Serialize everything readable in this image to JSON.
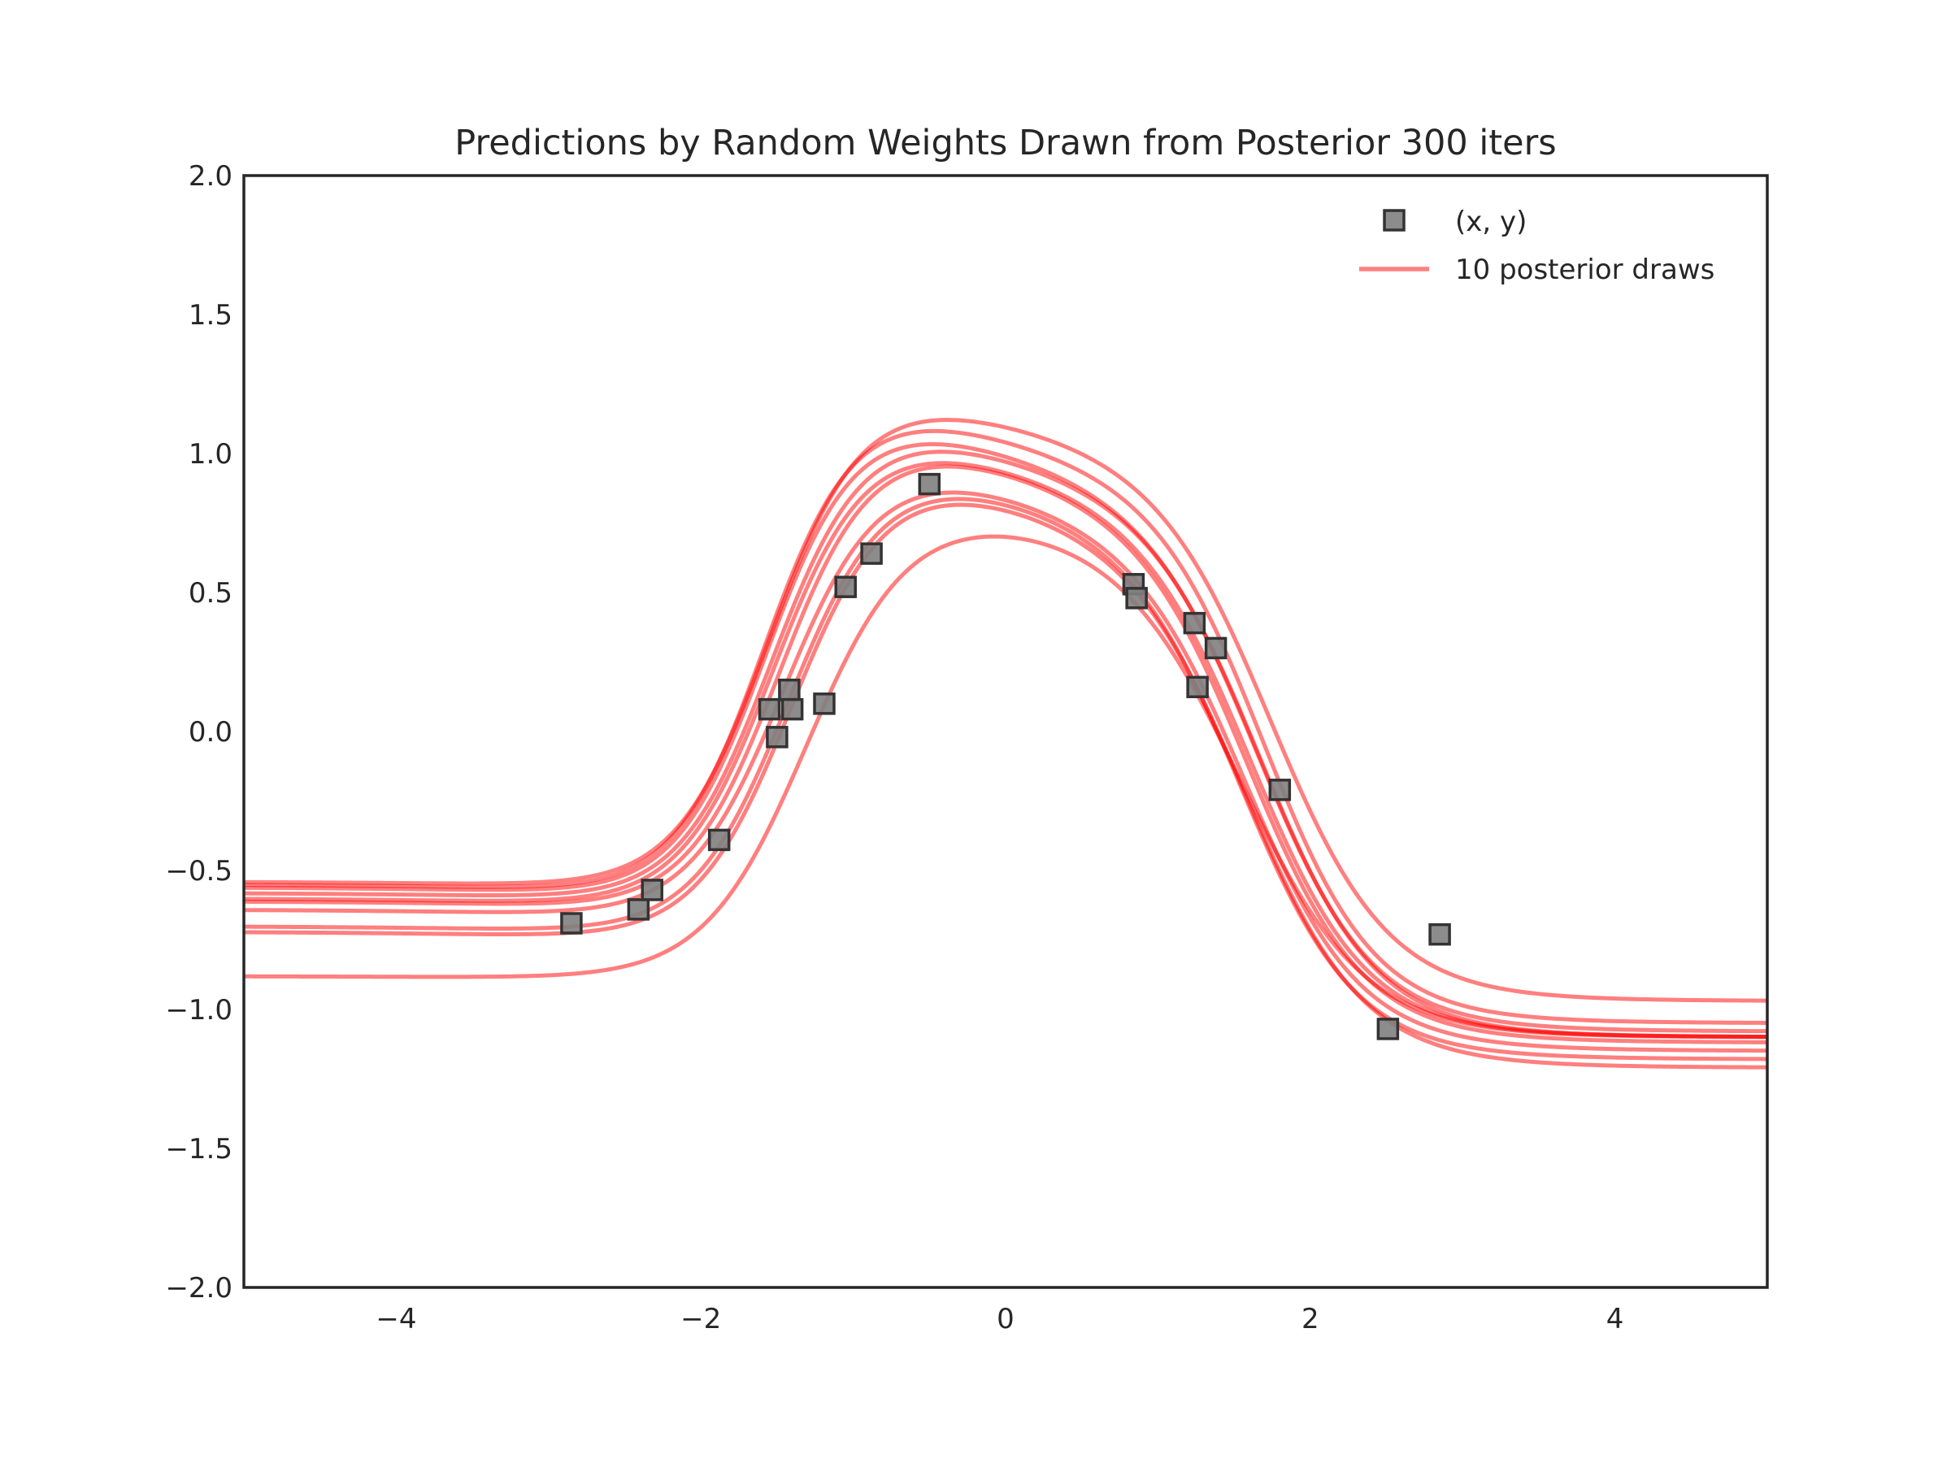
{
  "chart_data": {
    "type": "line",
    "title": "Predictions by Random Weights Drawn from Posterior 300 iters",
    "xlabel": "",
    "ylabel": "",
    "xlim": [
      -5,
      5
    ],
    "ylim": [
      -2,
      2
    ],
    "xticks": [
      -4,
      -2,
      0,
      2,
      4
    ],
    "xtick_labels": [
      "−4",
      "−2",
      "0",
      "2",
      "4"
    ],
    "yticks": [
      -2,
      -1.5,
      -1,
      -0.5,
      0,
      0.5,
      1,
      1.5,
      2
    ],
    "ytick_labels": [
      "−2.0",
      "−1.5",
      "−1.0",
      "−0.5",
      "0.0",
      "0.5",
      "1.0",
      "1.5",
      "2.0"
    ],
    "grid": false,
    "legend_position": "top-right",
    "colors": {
      "line": "#ff0000",
      "line_alpha": 0.5,
      "marker_fill": "#7f7f7f",
      "marker_edge": "#333333",
      "axes": "#262626"
    },
    "scatter": {
      "name": "(x, y)",
      "marker": "square",
      "points": [
        {
          "x": -2.85,
          "y": -0.69
        },
        {
          "x": -2.41,
          "y": -0.64
        },
        {
          "x": -2.32,
          "y": -0.57
        },
        {
          "x": -1.88,
          "y": -0.39
        },
        {
          "x": -1.55,
          "y": 0.08
        },
        {
          "x": -1.5,
          "y": -0.02
        },
        {
          "x": -1.42,
          "y": 0.15
        },
        {
          "x": -1.4,
          "y": 0.08
        },
        {
          "x": -1.19,
          "y": 0.1
        },
        {
          "x": -1.05,
          "y": 0.52
        },
        {
          "x": -0.88,
          "y": 0.64
        },
        {
          "x": -0.5,
          "y": 0.89
        },
        {
          "x": 0.84,
          "y": 0.53
        },
        {
          "x": 0.86,
          "y": 0.48
        },
        {
          "x": 1.24,
          "y": 0.39
        },
        {
          "x": 1.26,
          "y": 0.16
        },
        {
          "x": 1.38,
          "y": 0.3
        },
        {
          "x": 1.8,
          "y": -0.21
        },
        {
          "x": 2.51,
          "y": -1.07
        },
        {
          "x": 2.85,
          "y": -0.73
        }
      ]
    },
    "lines": {
      "name": "10 posterior draws",
      "draws": [
        {
          "left": -0.54,
          "right": -0.97,
          "peak": 1.11,
          "center": -0.15,
          "rise": -1.55,
          "fall": 1.75,
          "ws": 0.31,
          "wf": 0.38
        },
        {
          "left": -0.55,
          "right": -1.05,
          "peak": 1.06,
          "center": -0.15,
          "rise": -1.58,
          "fall": 1.7,
          "ws": 0.3,
          "wf": 0.36
        },
        {
          "left": -0.56,
          "right": -1.08,
          "peak": 1.01,
          "center": -0.15,
          "rise": -1.57,
          "fall": 1.66,
          "ws": 0.3,
          "wf": 0.37
        },
        {
          "left": -0.58,
          "right": -1.1,
          "peak": 0.99,
          "center": -0.15,
          "rise": -1.53,
          "fall": 1.68,
          "ws": 0.31,
          "wf": 0.37
        },
        {
          "left": -0.6,
          "right": -1.1,
          "peak": 0.95,
          "center": -0.15,
          "rise": -1.52,
          "fall": 1.62,
          "ws": 0.31,
          "wf": 0.37
        },
        {
          "left": -0.61,
          "right": -1.12,
          "peak": 0.94,
          "center": -0.15,
          "rise": -1.48,
          "fall": 1.6,
          "ws": 0.31,
          "wf": 0.37
        },
        {
          "left": -0.64,
          "right": -1.15,
          "peak": 0.85,
          "center": -0.15,
          "rise": -1.45,
          "fall": 1.58,
          "ws": 0.32,
          "wf": 0.37
        },
        {
          "left": -0.7,
          "right": -1.18,
          "peak": 0.83,
          "center": -0.15,
          "rise": -1.42,
          "fall": 1.55,
          "ws": 0.32,
          "wf": 0.37
        },
        {
          "left": -0.72,
          "right": -1.21,
          "peak": 0.81,
          "center": -0.15,
          "rise": -1.4,
          "fall": 1.58,
          "ws": 0.32,
          "wf": 0.38
        },
        {
          "left": -0.88,
          "right": -1.1,
          "peak": 0.7,
          "center": -0.15,
          "rise": -1.3,
          "fall": 1.55,
          "ws": 0.34,
          "wf": 0.4
        }
      ]
    }
  }
}
